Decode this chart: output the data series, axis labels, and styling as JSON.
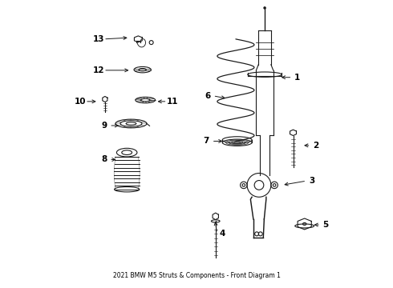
{
  "title": "2021 BMW M5 Struts & Components - Front Diagram 1",
  "bg_color": "#ffffff",
  "line_color": "#1a1a1a",
  "label_color": "#000000",
  "arrow_data": [
    [
      1,
      0.855,
      0.735,
      0.79,
      0.735
    ],
    [
      2,
      0.92,
      0.495,
      0.87,
      0.495
    ],
    [
      3,
      0.905,
      0.37,
      0.8,
      0.355
    ],
    [
      4,
      0.59,
      0.185,
      0.565,
      0.235
    ],
    [
      5,
      0.955,
      0.215,
      0.905,
      0.215
    ],
    [
      6,
      0.54,
      0.67,
      0.61,
      0.66
    ],
    [
      7,
      0.535,
      0.51,
      0.6,
      0.51
    ],
    [
      8,
      0.175,
      0.445,
      0.225,
      0.445
    ],
    [
      9,
      0.175,
      0.565,
      0.235,
      0.565
    ],
    [
      10,
      0.09,
      0.65,
      0.155,
      0.65
    ],
    [
      11,
      0.415,
      0.65,
      0.355,
      0.65
    ],
    [
      12,
      0.155,
      0.76,
      0.27,
      0.76
    ],
    [
      13,
      0.155,
      0.87,
      0.265,
      0.875
    ]
  ]
}
